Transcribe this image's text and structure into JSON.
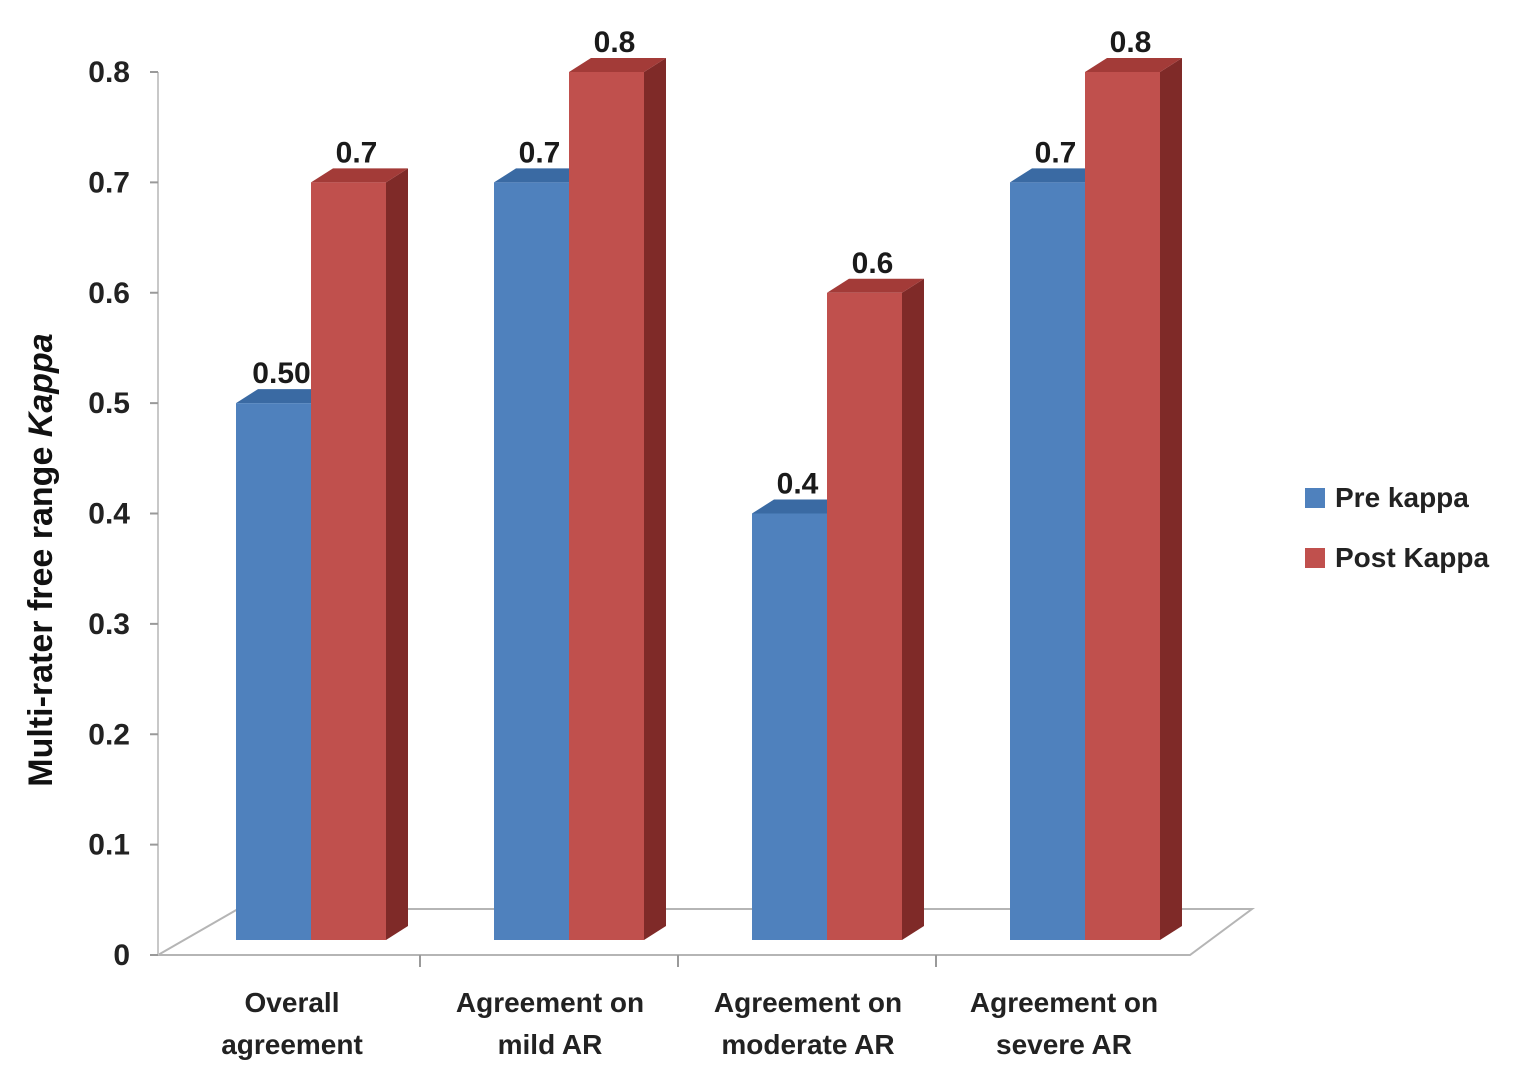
{
  "chart_data": {
    "type": "bar",
    "categories": [
      [
        "Overall",
        "agreement"
      ],
      [
        "Agreement on",
        "mild AR"
      ],
      [
        "Agreement on",
        "moderate AR"
      ],
      [
        "Agreement on",
        "severe AR"
      ]
    ],
    "series": [
      {
        "name": "Pre kappa",
        "values": [
          0.5,
          0.7,
          0.4,
          0.7
        ],
        "labels": [
          "0.50",
          "0.7",
          "0.4",
          "0.7"
        ],
        "color": "#4f81bd",
        "side_color": "#2f5b8f",
        "top_color": "#3a6aa3"
      },
      {
        "name": "Post Kappa",
        "values": [
          0.7,
          0.8,
          0.6,
          0.8
        ],
        "labels": [
          "0.7",
          "0.8",
          "0.6",
          "0.8"
        ],
        "color": "#c0504d",
        "side_color": "#7f2a28",
        "top_color": "#a33b38"
      }
    ],
    "ylabel_main": "Multi-rater free range ",
    "ylabel_italic": "Kappa",
    "ylim": [
      0,
      0.8
    ],
    "yticks": [
      "0",
      "0.1",
      "0.2",
      "0.3",
      "0.4",
      "0.5",
      "0.6",
      "0.7",
      "0.8"
    ],
    "legend_position": "right",
    "three_d": true
  }
}
